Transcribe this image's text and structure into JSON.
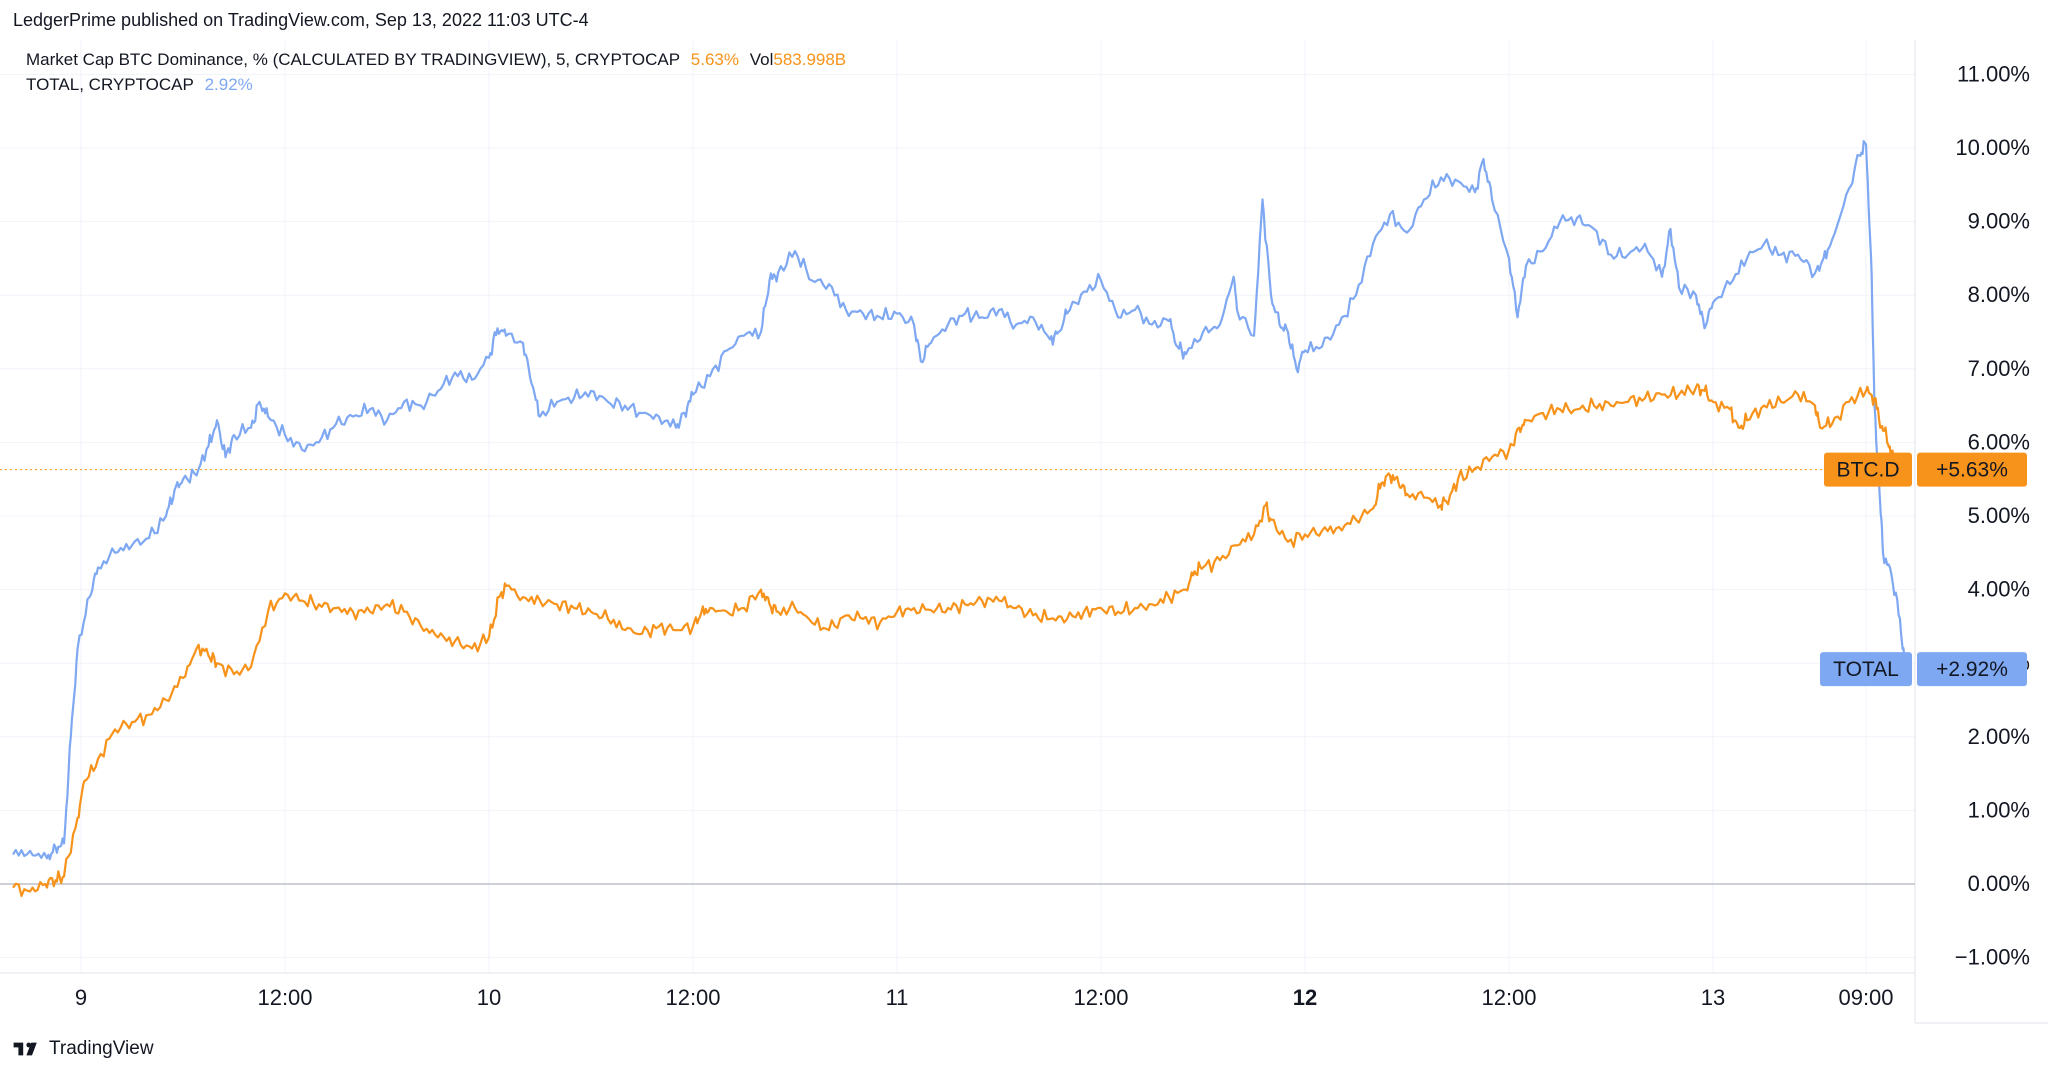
{
  "header": {
    "attribution": "LedgerPrime published on TradingView.com, Sep 13, 2022 11:03 UTC-4"
  },
  "legend": {
    "series1": {
      "name": "Market Cap BTC Dominance, % (CALCULATED BY TRADINGVIEW), 5, CRYPTOCAP",
      "value": "5.63%",
      "vol_label": "Vol",
      "vol_value": "583.998B",
      "color": "#f7931a"
    },
    "series2": {
      "name": "TOTAL, CRYPTOCAP",
      "value": "2.92%",
      "color": "#7fa8f2"
    }
  },
  "footer": {
    "brand": "TradingView"
  },
  "chart_data": {
    "type": "line",
    "x_tick_labels": [
      "9",
      "12:00",
      "10",
      "12:00",
      "11",
      "12:00",
      "12",
      "12:00",
      "13",
      "09:00"
    ],
    "x_tick_positions_hours": [
      24,
      36,
      48,
      60,
      72,
      84,
      96,
      108,
      120,
      129
    ],
    "x_range_hours": [
      20,
      131
    ],
    "y_tick_labels": [
      "11.00%",
      "10.00%",
      "9.00%",
      "8.00%",
      "7.00%",
      "6.00%",
      "5.00%",
      "4.00%",
      "3.00%",
      "2.00%",
      "1.00%",
      "0.00%",
      "−1.00%"
    ],
    "ylim": [
      -1.2,
      11.4
    ],
    "grid": true,
    "series": [
      {
        "name": "BTC.D",
        "label_value": "+5.63%",
        "color": "#f7931a",
        "last_value": 5.63,
        "points": [
          [
            20,
            -0.05
          ],
          [
            21,
            -0.1
          ],
          [
            21.9,
            0
          ],
          [
            22.5,
            0.05
          ],
          [
            23,
            0.1
          ],
          [
            23.8,
            0.9
          ],
          [
            24.2,
            1.4
          ],
          [
            25,
            1.7
          ],
          [
            26,
            2.1
          ],
          [
            27,
            2.2
          ],
          [
            28,
            2.3
          ],
          [
            29,
            2.5
          ],
          [
            30,
            2.8
          ],
          [
            30.8,
            3.2
          ],
          [
            31.5,
            3.1
          ],
          [
            32,
            3.0
          ],
          [
            33,
            2.85
          ],
          [
            34,
            2.95
          ],
          [
            35,
            3.7
          ],
          [
            36,
            3.95
          ],
          [
            37,
            3.85
          ],
          [
            38,
            3.8
          ],
          [
            39,
            3.75
          ],
          [
            40,
            3.7
          ],
          [
            41,
            3.7
          ],
          [
            42,
            3.8
          ],
          [
            43,
            3.7
          ],
          [
            44,
            3.5
          ],
          [
            45,
            3.35
          ],
          [
            46,
            3.3
          ],
          [
            47,
            3.2
          ],
          [
            48,
            3.35
          ],
          [
            48.6,
            3.9
          ],
          [
            49,
            4.05
          ],
          [
            50,
            3.9
          ],
          [
            51,
            3.85
          ],
          [
            52,
            3.8
          ],
          [
            53,
            3.75
          ],
          [
            54,
            3.7
          ],
          [
            55,
            3.6
          ],
          [
            56,
            3.45
          ],
          [
            57,
            3.4
          ],
          [
            58,
            3.5
          ],
          [
            59,
            3.45
          ],
          [
            60,
            3.5
          ],
          [
            60.5,
            3.7
          ],
          [
            61,
            3.75
          ],
          [
            62,
            3.7
          ],
          [
            63,
            3.75
          ],
          [
            64,
            4.0
          ],
          [
            64.5,
            3.8
          ],
          [
            65,
            3.7
          ],
          [
            66,
            3.75
          ],
          [
            67,
            3.55
          ],
          [
            68,
            3.45
          ],
          [
            69,
            3.65
          ],
          [
            70,
            3.6
          ],
          [
            71,
            3.55
          ],
          [
            72,
            3.7
          ],
          [
            73,
            3.75
          ],
          [
            74,
            3.72
          ],
          [
            75,
            3.75
          ],
          [
            76,
            3.8
          ],
          [
            77,
            3.85
          ],
          [
            78,
            3.85
          ],
          [
            79,
            3.75
          ],
          [
            80,
            3.65
          ],
          [
            81,
            3.6
          ],
          [
            82,
            3.6
          ],
          [
            83,
            3.7
          ],
          [
            84,
            3.75
          ],
          [
            85,
            3.7
          ],
          [
            86,
            3.75
          ],
          [
            87,
            3.8
          ],
          [
            88,
            3.9
          ],
          [
            89,
            4.0
          ],
          [
            89.5,
            4.25
          ],
          [
            90,
            4.3
          ],
          [
            91,
            4.4
          ],
          [
            92,
            4.6
          ],
          [
            93,
            4.75
          ],
          [
            93.7,
            5.15
          ],
          [
            94,
            4.95
          ],
          [
            95,
            4.65
          ],
          [
            96,
            4.75
          ],
          [
            97,
            4.8
          ],
          [
            98,
            4.85
          ],
          [
            99,
            4.95
          ],
          [
            100,
            5.1
          ],
          [
            100.5,
            5.45
          ],
          [
            101,
            5.55
          ],
          [
            101.5,
            5.45
          ],
          [
            102,
            5.3
          ],
          [
            103,
            5.25
          ],
          [
            104,
            5.15
          ],
          [
            104.3,
            5.2
          ],
          [
            105,
            5.5
          ],
          [
            106,
            5.65
          ],
          [
            107,
            5.8
          ],
          [
            108,
            5.9
          ],
          [
            108.6,
            6.2
          ],
          [
            109,
            6.3
          ],
          [
            110,
            6.4
          ],
          [
            111,
            6.45
          ],
          [
            112,
            6.45
          ],
          [
            113,
            6.5
          ],
          [
            114,
            6.5
          ],
          [
            115,
            6.55
          ],
          [
            116,
            6.6
          ],
          [
            117,
            6.65
          ],
          [
            118,
            6.65
          ],
          [
            119,
            6.75
          ],
          [
            119.5,
            6.7
          ],
          [
            120,
            6.55
          ],
          [
            121,
            6.45
          ],
          [
            121.5,
            6.2
          ],
          [
            122,
            6.3
          ],
          [
            123,
            6.5
          ],
          [
            124,
            6.55
          ],
          [
            125,
            6.65
          ],
          [
            126,
            6.5
          ],
          [
            126.3,
            6.2
          ],
          [
            127,
            6.25
          ],
          [
            128,
            6.55
          ],
          [
            129,
            6.7
          ],
          [
            129.5,
            6.6
          ],
          [
            129.9,
            6.2
          ],
          [
            130.2,
            6.1
          ],
          [
            130.5,
            5.85
          ],
          [
            130.8,
            5.63
          ]
        ]
      },
      {
        "name": "TOTAL",
        "label_value": "+2.92%",
        "color": "#7fa8f2",
        "last_value": 2.92,
        "points": [
          [
            20,
            0.4
          ],
          [
            21,
            0.45
          ],
          [
            22,
            0.35
          ],
          [
            22.5,
            0.5
          ],
          [
            23,
            0.55
          ],
          [
            23.4,
            2.0
          ],
          [
            23.8,
            3.2
          ],
          [
            24.5,
            3.9
          ],
          [
            25,
            4.3
          ],
          [
            26,
            4.5
          ],
          [
            27,
            4.6
          ],
          [
            28,
            4.7
          ],
          [
            29,
            5.0
          ],
          [
            29.5,
            5.35
          ],
          [
            30,
            5.5
          ],
          [
            30.8,
            5.55
          ],
          [
            31.5,
            5.95
          ],
          [
            32,
            6.3
          ],
          [
            32.5,
            5.8
          ],
          [
            33,
            6.1
          ],
          [
            34,
            6.2
          ],
          [
            34.5,
            6.55
          ],
          [
            35,
            6.35
          ],
          [
            36,
            6.1
          ],
          [
            37,
            5.9
          ],
          [
            38,
            6.0
          ],
          [
            39,
            6.25
          ],
          [
            40,
            6.35
          ],
          [
            41,
            6.45
          ],
          [
            42,
            6.3
          ],
          [
            43,
            6.55
          ],
          [
            44,
            6.5
          ],
          [
            45,
            6.7
          ],
          [
            46,
            6.95
          ],
          [
            47,
            6.85
          ],
          [
            48,
            7.15
          ],
          [
            48.5,
            7.55
          ],
          [
            49,
            7.45
          ],
          [
            50,
            7.35
          ],
          [
            50.5,
            6.8
          ],
          [
            51,
            6.35
          ],
          [
            52,
            6.55
          ],
          [
            53,
            6.6
          ],
          [
            54,
            6.7
          ],
          [
            55,
            6.55
          ],
          [
            56,
            6.5
          ],
          [
            57,
            6.4
          ],
          [
            58,
            6.35
          ],
          [
            59,
            6.2
          ],
          [
            59.5,
            6.4
          ],
          [
            60,
            6.65
          ],
          [
            61,
            6.9
          ],
          [
            62,
            7.25
          ],
          [
            63,
            7.45
          ],
          [
            64,
            7.5
          ],
          [
            64.5,
            8.2
          ],
          [
            65,
            8.3
          ],
          [
            66,
            8.6
          ],
          [
            67,
            8.2
          ],
          [
            68,
            8.15
          ],
          [
            69,
            7.8
          ],
          [
            70,
            7.75
          ],
          [
            71,
            7.7
          ],
          [
            72,
            7.75
          ],
          [
            73,
            7.6
          ],
          [
            73.4,
            7.1
          ],
          [
            74,
            7.35
          ],
          [
            75,
            7.6
          ],
          [
            76,
            7.75
          ],
          [
            77,
            7.7
          ],
          [
            78,
            7.8
          ],
          [
            79,
            7.6
          ],
          [
            80,
            7.7
          ],
          [
            81,
            7.4
          ],
          [
            81.5,
            7.5
          ],
          [
            82,
            7.75
          ],
          [
            83,
            8.05
          ],
          [
            84,
            8.2
          ],
          [
            85,
            7.7
          ],
          [
            86,
            7.8
          ],
          [
            87,
            7.6
          ],
          [
            88,
            7.65
          ],
          [
            88.5,
            7.3
          ],
          [
            89,
            7.2
          ],
          [
            90,
            7.5
          ],
          [
            91,
            7.6
          ],
          [
            91.8,
            8.25
          ],
          [
            92,
            7.8
          ],
          [
            93,
            7.45
          ],
          [
            93.5,
            9.3
          ],
          [
            94,
            8.0
          ],
          [
            94.5,
            7.6
          ],
          [
            95,
            7.5
          ],
          [
            95.5,
            7.0
          ],
          [
            96,
            7.25
          ],
          [
            97,
            7.3
          ],
          [
            98,
            7.6
          ],
          [
            99,
            8.0
          ],
          [
            100,
            8.7
          ],
          [
            101,
            9.1
          ],
          [
            102,
            8.85
          ],
          [
            103,
            9.3
          ],
          [
            104,
            9.6
          ],
          [
            105,
            9.55
          ],
          [
            106,
            9.4
          ],
          [
            106.5,
            9.85
          ],
          [
            107,
            9.3
          ],
          [
            108,
            8.5
          ],
          [
            108.5,
            7.7
          ],
          [
            109,
            8.4
          ],
          [
            110,
            8.6
          ],
          [
            111,
            9.0
          ],
          [
            112,
            9.05
          ],
          [
            113,
            8.9
          ],
          [
            114,
            8.55
          ],
          [
            115,
            8.55
          ],
          [
            116,
            8.7
          ],
          [
            117,
            8.25
          ],
          [
            117.5,
            8.9
          ],
          [
            118,
            8.1
          ],
          [
            119,
            8.0
          ],
          [
            119.5,
            7.55
          ],
          [
            120,
            7.9
          ],
          [
            121,
            8.15
          ],
          [
            122,
            8.5
          ],
          [
            123,
            8.7
          ],
          [
            124,
            8.55
          ],
          [
            125,
            8.55
          ],
          [
            126,
            8.3
          ],
          [
            126.5,
            8.5
          ],
          [
            127,
            8.75
          ],
          [
            128,
            9.45
          ],
          [
            128.6,
            9.9
          ],
          [
            129,
            10.05
          ],
          [
            129.3,
            8.5
          ],
          [
            129.5,
            6.5
          ],
          [
            129.8,
            5.3
          ],
          [
            130,
            4.5
          ],
          [
            130.5,
            4.2
          ],
          [
            131,
            3.6
          ],
          [
            131.3,
            2.92
          ]
        ]
      }
    ]
  }
}
